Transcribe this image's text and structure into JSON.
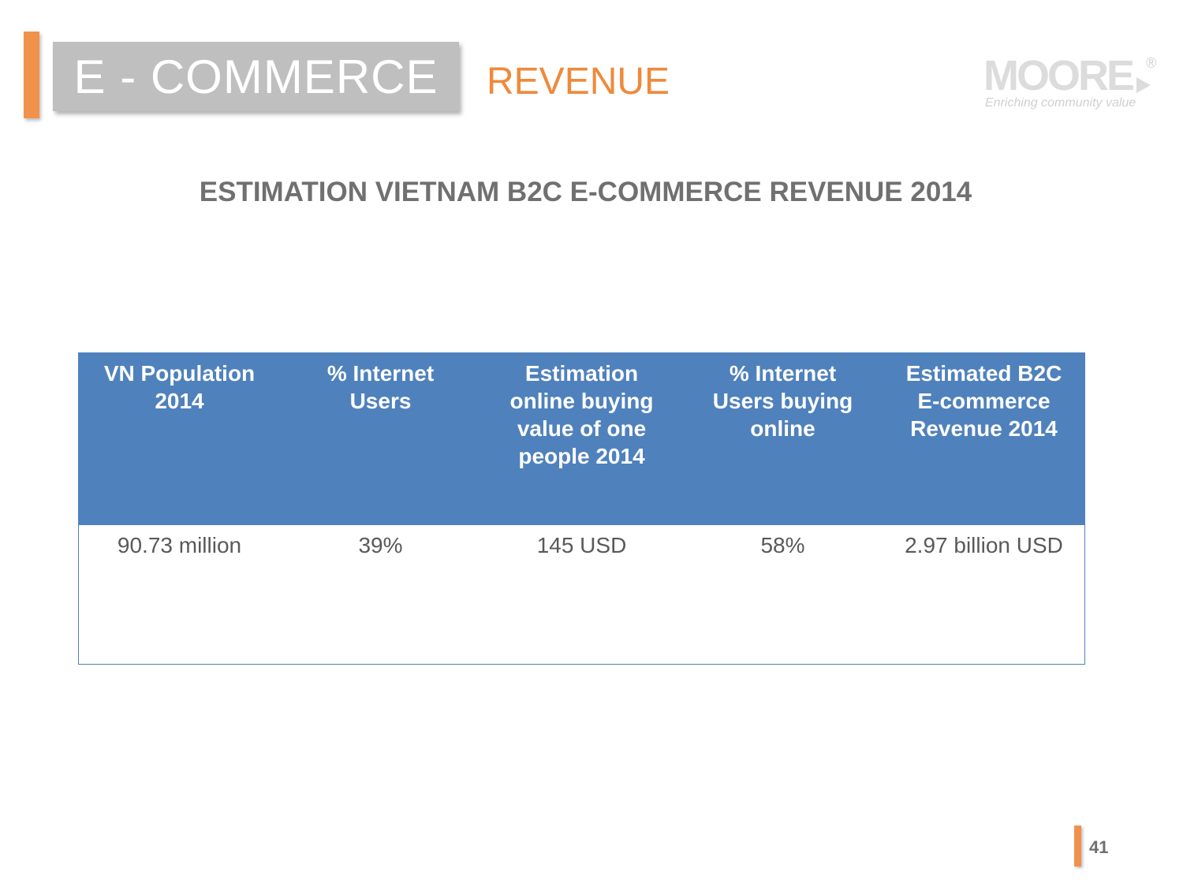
{
  "header": {
    "title": "E - COMMERCE",
    "subtitle": "REVENUE"
  },
  "logo": {
    "name": "MOORE",
    "registered": "®",
    "tagline": "Enriching community value"
  },
  "heading": "ESTIMATION VIETNAM B2C E-COMMERCE REVENUE 2014",
  "table": {
    "headers": [
      "VN Population 2014",
      "% Internet Users",
      "Estimation online buying value of one people 2014",
      "% Internet Users buying online",
      "Estimated B2C E-commerce Revenue 2014"
    ],
    "row": [
      "90.73 million",
      "39%",
      "145 USD",
      "58%",
      "2.97 billion USD"
    ]
  },
  "page_number": "41",
  "colors": {
    "accent": "#f0924c",
    "title_box": "#bfbfbf",
    "subtitle": "#ee8a3c",
    "table_header": "#4f81bd",
    "heading_text": "#707070"
  }
}
